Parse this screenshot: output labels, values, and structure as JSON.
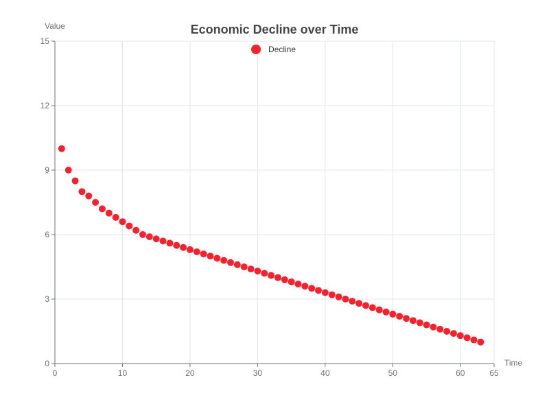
{
  "chart_data": {
    "type": "scatter",
    "title": "Economic Decline over Time",
    "xlabel": "Time",
    "ylabel": "Value",
    "xlim": [
      0,
      65
    ],
    "ylim": [
      0,
      15
    ],
    "x_ticks": [
      0,
      10,
      20,
      30,
      40,
      50,
      60,
      65
    ],
    "y_ticks": [
      0,
      3,
      6,
      9,
      12,
      15
    ],
    "grid": true,
    "legend_position": "top-center",
    "series": [
      {
        "name": "Decline",
        "color": "#f5222d",
        "points": [
          [
            1,
            10.0
          ],
          [
            2,
            9.0
          ],
          [
            3,
            8.5
          ],
          [
            4,
            8.0
          ],
          [
            5,
            7.8
          ],
          [
            6,
            7.5
          ],
          [
            7,
            7.2
          ],
          [
            8,
            7.0
          ],
          [
            9,
            6.8
          ],
          [
            10,
            6.6
          ],
          [
            11,
            6.4
          ],
          [
            12,
            6.2
          ],
          [
            13,
            6.0
          ],
          [
            14,
            5.9
          ],
          [
            15,
            5.8
          ],
          [
            16,
            5.7
          ],
          [
            17,
            5.6
          ],
          [
            18,
            5.5
          ],
          [
            19,
            5.4
          ],
          [
            20,
            5.3
          ],
          [
            21,
            5.2
          ],
          [
            22,
            5.1
          ],
          [
            23,
            5.0
          ],
          [
            24,
            4.9
          ],
          [
            25,
            4.8
          ],
          [
            26,
            4.7
          ],
          [
            27,
            4.6
          ],
          [
            28,
            4.5
          ],
          [
            29,
            4.4
          ],
          [
            30,
            4.3
          ],
          [
            31,
            4.2
          ],
          [
            32,
            4.1
          ],
          [
            33,
            4.0
          ],
          [
            34,
            3.9
          ],
          [
            35,
            3.8
          ],
          [
            36,
            3.7
          ],
          [
            37,
            3.6
          ],
          [
            38,
            3.5
          ],
          [
            39,
            3.4
          ],
          [
            40,
            3.3
          ],
          [
            41,
            3.2
          ],
          [
            42,
            3.1
          ],
          [
            43,
            3.0
          ],
          [
            44,
            2.9
          ],
          [
            45,
            2.8
          ],
          [
            46,
            2.7
          ],
          [
            47,
            2.6
          ],
          [
            48,
            2.5
          ],
          [
            49,
            2.4
          ],
          [
            50,
            2.3
          ],
          [
            51,
            2.2
          ],
          [
            52,
            2.1
          ],
          [
            53,
            2.0
          ],
          [
            54,
            1.9
          ],
          [
            55,
            1.8
          ],
          [
            56,
            1.7
          ],
          [
            57,
            1.6
          ],
          [
            58,
            1.5
          ],
          [
            59,
            1.4
          ],
          [
            60,
            1.3
          ],
          [
            61,
            1.2
          ],
          [
            62,
            1.1
          ],
          [
            63,
            1.0
          ]
        ]
      }
    ]
  }
}
